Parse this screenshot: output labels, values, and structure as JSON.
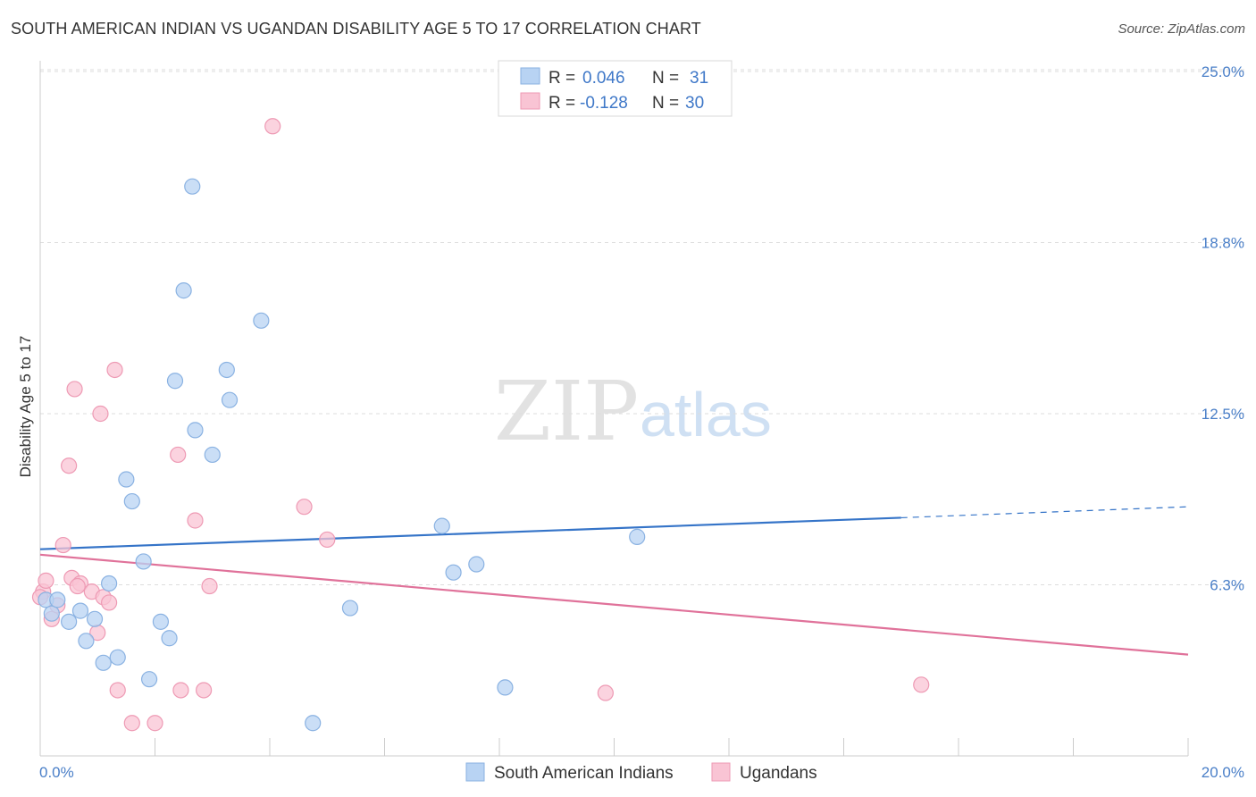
{
  "header": {
    "title": "SOUTH AMERICAN INDIAN VS UGANDAN DISABILITY AGE 5 TO 17 CORRELATION CHART",
    "source": "Source: ZipAtlas.com"
  },
  "watermark": {
    "zip": "ZIP",
    "atlas": "atlas"
  },
  "colors": {
    "blue_fill": "#b8d3f3",
    "blue_stroke": "#8ab2e2",
    "blue_line": "#3574c8",
    "pink_fill": "#f9c4d4",
    "pink_stroke": "#ee9ab4",
    "pink_line": "#e0729a",
    "grid": "#dddddd",
    "axis_text": "#4a7fc8"
  },
  "legend": {
    "rows": [
      {
        "r_label": "R = ",
        "r_value": "0.046",
        "n_label": "N = ",
        "n_value": "31"
      },
      {
        "r_label": "R = ",
        "r_value": "-0.128",
        "n_label": "N = ",
        "n_value": "30"
      }
    ]
  },
  "chart_data": {
    "type": "scatter",
    "title": "SOUTH AMERICAN INDIAN VS UGANDAN DISABILITY AGE 5 TO 17 CORRELATION CHART",
    "xlabel": "",
    "ylabel": "Disability Age 5 to 17",
    "xlim": [
      0,
      20
    ],
    "ylim": [
      0,
      25
    ],
    "x_tick_labels": [
      "0.0%",
      "20.0%"
    ],
    "y_ticks": [
      6.25,
      12.5,
      18.75,
      25
    ],
    "y_tick_labels": [
      "6.3%",
      "12.5%",
      "18.8%",
      "25.0%"
    ],
    "grid": true,
    "legend_position": "bottom",
    "series": [
      {
        "name": "South American Indians",
        "r": 0.046,
        "n": 31,
        "trend": {
          "x0": 0,
          "y0": 7.55,
          "x1": 15,
          "y1": 8.7,
          "dash_to_x": 20,
          "dash_to_y": 9.1
        },
        "points": [
          [
            0.1,
            5.7
          ],
          [
            0.2,
            5.2
          ],
          [
            0.3,
            5.7
          ],
          [
            0.5,
            4.9
          ],
          [
            0.7,
            5.3
          ],
          [
            0.8,
            4.2
          ],
          [
            0.95,
            5.0
          ],
          [
            1.1,
            3.4
          ],
          [
            1.2,
            6.3
          ],
          [
            1.35,
            3.6
          ],
          [
            1.5,
            10.1
          ],
          [
            1.6,
            9.3
          ],
          [
            1.8,
            7.1
          ],
          [
            1.9,
            2.8
          ],
          [
            2.1,
            4.9
          ],
          [
            2.25,
            4.3
          ],
          [
            2.35,
            13.7
          ],
          [
            2.5,
            17.0
          ],
          [
            2.65,
            20.8
          ],
          [
            2.7,
            11.9
          ],
          [
            3.0,
            11.0
          ],
          [
            3.25,
            14.1
          ],
          [
            3.3,
            13.0
          ],
          [
            3.85,
            15.9
          ],
          [
            4.75,
            1.2
          ],
          [
            5.4,
            5.4
          ],
          [
            7.0,
            8.4
          ],
          [
            7.2,
            6.7
          ],
          [
            7.6,
            7.0
          ],
          [
            8.1,
            2.5
          ],
          [
            10.4,
            8.0
          ]
        ]
      },
      {
        "name": "Ugandans",
        "r": -0.128,
        "n": 30,
        "trend": {
          "x0": 0,
          "y0": 7.35,
          "x1": 20,
          "y1": 3.7
        },
        "points": [
          [
            0.05,
            6.0
          ],
          [
            0.1,
            6.4
          ],
          [
            0.2,
            5.0
          ],
          [
            0.3,
            5.5
          ],
          [
            0.4,
            7.7
          ],
          [
            0.5,
            10.6
          ],
          [
            0.55,
            6.5
          ],
          [
            0.6,
            13.4
          ],
          [
            0.7,
            6.3
          ],
          [
            0.65,
            6.2
          ],
          [
            0.9,
            6.0
          ],
          [
            1.0,
            4.5
          ],
          [
            1.05,
            12.5
          ],
          [
            1.1,
            5.8
          ],
          [
            1.2,
            5.6
          ],
          [
            1.3,
            14.1
          ],
          [
            1.35,
            2.4
          ],
          [
            1.6,
            1.2
          ],
          [
            2.0,
            1.2
          ],
          [
            2.4,
            11.0
          ],
          [
            2.45,
            2.4
          ],
          [
            2.7,
            8.6
          ],
          [
            2.85,
            2.4
          ],
          [
            2.95,
            6.2
          ],
          [
            4.05,
            23.0
          ],
          [
            4.6,
            9.1
          ],
          [
            5.0,
            7.9
          ],
          [
            9.85,
            2.3
          ],
          [
            15.35,
            2.6
          ],
          [
            0.0,
            5.8
          ]
        ]
      }
    ]
  }
}
